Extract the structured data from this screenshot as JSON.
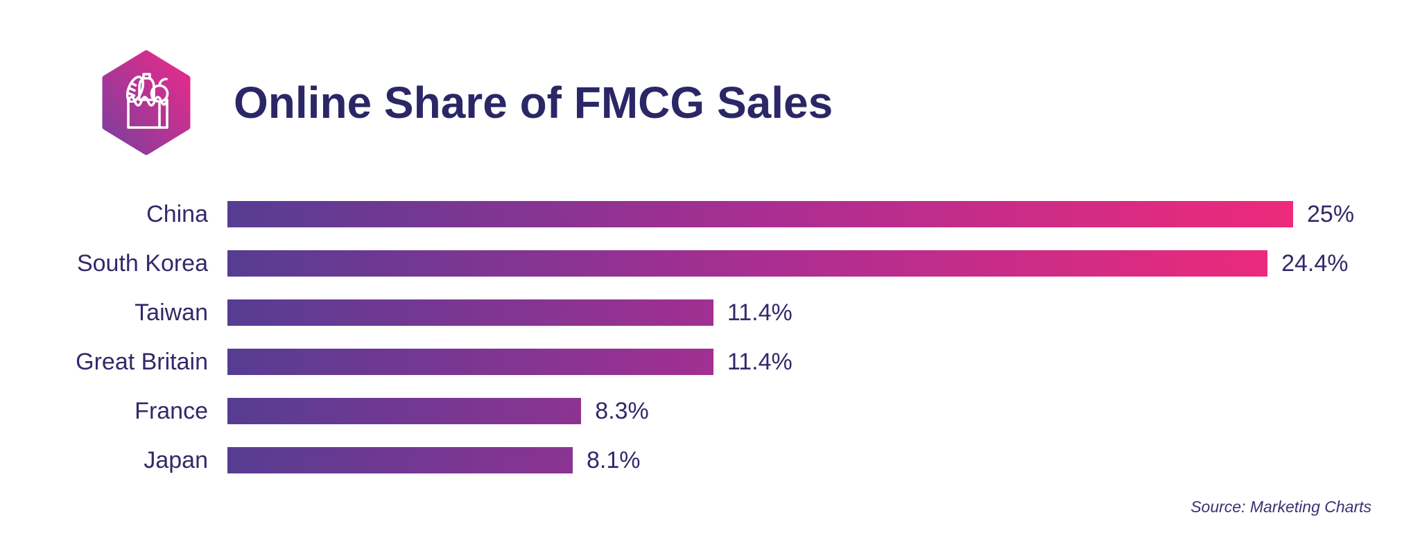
{
  "header": {
    "title": "Online Share of FMCG Sales",
    "icon": "grocery-bag-hexagon-icon"
  },
  "colors": {
    "title": "#2b2766",
    "label": "#32296b",
    "bar_gradient_start": "#563d92",
    "bar_gradient_mid": "#a92e92",
    "bar_gradient_end": "#ee2a7b",
    "hex_gradient_start": "#7b3f9d",
    "hex_gradient_end": "#ec2a8a"
  },
  "source_note": "Source: Marketing Charts",
  "chart_data": {
    "type": "bar",
    "orientation": "horizontal",
    "title": "Online Share of FMCG Sales",
    "categories": [
      "China",
      "South Korea",
      "Taiwan",
      "Great Britain",
      "France",
      "Japan"
    ],
    "values": [
      25,
      24.4,
      11.4,
      11.4,
      8.3,
      8.1
    ],
    "value_labels": [
      "25%",
      "24.4%",
      "11.4%",
      "11.4%",
      "8.3%",
      "8.1%"
    ],
    "unit": "%",
    "xlim": [
      0,
      25
    ],
    "grid": false,
    "legend": false,
    "value_label_position": "right-of-bar",
    "bar_color_style": "shared gradient purple-to-pink clipped at bar length",
    "source": "Source: Marketing Charts"
  }
}
